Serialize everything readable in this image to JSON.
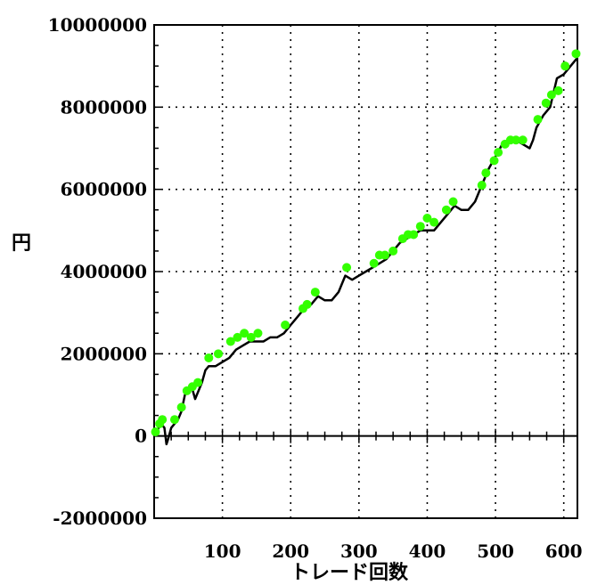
{
  "chart_data": {
    "type": "line",
    "title": "",
    "xlabel": "トレード回数",
    "ylabel": "円",
    "xlim": [
      0,
      620
    ],
    "ylim": [
      -2000000,
      10000000
    ],
    "grid": true,
    "x_ticks": [
      100,
      200,
      300,
      400,
      500,
      600
    ],
    "x_tick_labels": [
      "100",
      "200",
      "300",
      "400",
      "500",
      "600"
    ],
    "y_ticks": [
      -2000000,
      0,
      2000000,
      4000000,
      6000000,
      8000000,
      10000000
    ],
    "y_tick_labels": [
      "-2000000",
      "0",
      "2000000",
      "4000000",
      "6000000",
      "8000000",
      "10000000"
    ],
    "colors": {
      "line": "#000000",
      "markers": "#33ff00",
      "grid": "#000000"
    },
    "series": [
      {
        "kind": "line",
        "x": [
          0,
          10,
          15,
          18,
          20,
          25,
          30,
          35,
          40,
          45,
          50,
          55,
          60,
          65,
          70,
          75,
          80,
          90,
          100,
          110,
          120,
          130,
          140,
          150,
          160,
          170,
          180,
          190,
          200,
          210,
          220,
          230,
          240,
          250,
          260,
          270,
          280,
          290,
          300,
          310,
          320,
          330,
          340,
          350,
          360,
          370,
          380,
          390,
          400,
          410,
          420,
          430,
          440,
          450,
          460,
          470,
          480,
          490,
          500,
          510,
          520,
          530,
          540,
          550,
          555,
          560,
          570,
          580,
          590,
          600,
          610,
          620
        ],
        "y": [
          0,
          300000,
          200000,
          -200000,
          -100000,
          200000,
          300000,
          400000,
          600000,
          1000000,
          1100000,
          1200000,
          900000,
          1100000,
          1300000,
          1600000,
          1700000,
          1700000,
          1800000,
          1900000,
          2100000,
          2200000,
          2300000,
          2300000,
          2300000,
          2400000,
          2400000,
          2500000,
          2700000,
          2900000,
          3100000,
          3200000,
          3400000,
          3300000,
          3300000,
          3500000,
          3900000,
          3800000,
          3900000,
          4000000,
          4100000,
          4200000,
          4300000,
          4500000,
          4700000,
          4800000,
          4900000,
          5000000,
          5000000,
          5000000,
          5200000,
          5400000,
          5600000,
          5500000,
          5500000,
          5700000,
          6100000,
          6500000,
          6800000,
          7100000,
          7200000,
          7200000,
          7100000,
          7000000,
          7200000,
          7500000,
          7800000,
          8000000,
          8700000,
          8800000,
          9000000,
          9200000
        ]
      },
      {
        "kind": "scatter",
        "x": [
          2,
          8,
          12,
          30,
          40,
          48,
          56,
          64,
          80,
          94,
          112,
          122,
          132,
          142,
          152,
          192,
          218,
          224,
          236,
          282,
          322,
          330,
          338,
          350,
          364,
          372,
          380,
          390,
          400,
          410,
          428,
          438,
          480,
          486,
          498,
          504,
          514,
          522,
          530,
          540,
          562,
          574,
          582,
          592,
          602,
          618
        ],
        "y": [
          100000,
          300000,
          400000,
          400000,
          700000,
          1100000,
          1200000,
          1300000,
          1900000,
          2000000,
          2300000,
          2400000,
          2500000,
          2400000,
          2500000,
          2700000,
          3100000,
          3200000,
          3500000,
          4100000,
          4200000,
          4400000,
          4400000,
          4500000,
          4800000,
          4900000,
          4900000,
          5100000,
          5300000,
          5200000,
          5500000,
          5700000,
          6100000,
          6400000,
          6700000,
          6900000,
          7100000,
          7200000,
          7200000,
          7200000,
          7700000,
          8100000,
          8300000,
          8400000,
          9000000,
          9300000
        ]
      }
    ]
  }
}
